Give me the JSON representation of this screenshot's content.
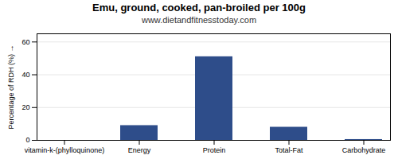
{
  "chart_data": {
    "type": "bar",
    "title": "Emu, ground, cooked, pan-broiled per 100g",
    "subtitle": "www.dietandfitnesstoday.com",
    "categories": [
      "vitamin-k-(phylloquinone)",
      "Energy",
      "Protein",
      "Total-Fat",
      "Carbohydrate"
    ],
    "values": [
      0.0,
      9.0,
      51.0,
      8.0,
      0.5
    ],
    "color": "#2e4d8a",
    "ylabel": "Percentage of RDH (%)",
    "ylim": [
      0,
      65
    ],
    "yticks": [
      0,
      20,
      40,
      60
    ],
    "grid": true
  }
}
